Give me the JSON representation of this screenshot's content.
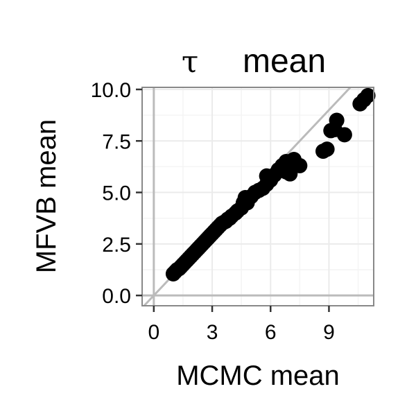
{
  "chart_data": {
    "type": "scatter",
    "title": {
      "symbol": "τ",
      "text": "mean"
    },
    "xlabel": "MCMC mean",
    "ylabel": "MFVB mean",
    "xlim": [
      -0.6,
      11.3
    ],
    "ylim": [
      -0.5,
      10.1
    ],
    "x_ticks": [
      {
        "value": 0,
        "label": "0"
      },
      {
        "value": 3,
        "label": "3"
      },
      {
        "value": 6,
        "label": "6"
      },
      {
        "value": 9,
        "label": "9"
      }
    ],
    "y_ticks": [
      {
        "value": 0,
        "label": "0.0"
      },
      {
        "value": 2.5,
        "label": "2.5"
      },
      {
        "value": 5,
        "label": "5.0"
      },
      {
        "value": 7.5,
        "label": "7.5"
      },
      {
        "value": 10,
        "label": "10.0"
      }
    ],
    "grid": true,
    "reference_lines": [
      "x = 0",
      "y = 0",
      "y = x"
    ],
    "point_color": "#000000",
    "reference_line_color": "#bbbbbb",
    "panel_border_color": "#888888",
    "grid_color": "#ebebeb",
    "points": [
      {
        "x": 1.0,
        "y": 1.05
      },
      {
        "x": 1.1,
        "y": 1.15
      },
      {
        "x": 1.2,
        "y": 1.25
      },
      {
        "x": 1.3,
        "y": 1.3
      },
      {
        "x": 1.4,
        "y": 1.4
      },
      {
        "x": 1.5,
        "y": 1.5
      },
      {
        "x": 1.6,
        "y": 1.6
      },
      {
        "x": 1.7,
        "y": 1.7
      },
      {
        "x": 1.8,
        "y": 1.8
      },
      {
        "x": 1.9,
        "y": 1.9
      },
      {
        "x": 2.0,
        "y": 2.0
      },
      {
        "x": 2.1,
        "y": 2.1
      },
      {
        "x": 2.2,
        "y": 2.2
      },
      {
        "x": 2.3,
        "y": 2.3
      },
      {
        "x": 2.4,
        "y": 2.4
      },
      {
        "x": 2.5,
        "y": 2.5
      },
      {
        "x": 2.6,
        "y": 2.6
      },
      {
        "x": 2.7,
        "y": 2.7
      },
      {
        "x": 2.8,
        "y": 2.8
      },
      {
        "x": 2.9,
        "y": 2.9
      },
      {
        "x": 3.0,
        "y": 3.0
      },
      {
        "x": 3.1,
        "y": 3.1
      },
      {
        "x": 3.2,
        "y": 3.2
      },
      {
        "x": 3.3,
        "y": 3.3
      },
      {
        "x": 3.4,
        "y": 3.4
      },
      {
        "x": 3.5,
        "y": 3.5
      },
      {
        "x": 3.6,
        "y": 3.55
      },
      {
        "x": 3.7,
        "y": 3.6
      },
      {
        "x": 3.8,
        "y": 3.7
      },
      {
        "x": 3.9,
        "y": 3.75
      },
      {
        "x": 4.0,
        "y": 3.85
      },
      {
        "x": 4.2,
        "y": 4.0
      },
      {
        "x": 4.3,
        "y": 4.1
      },
      {
        "x": 4.5,
        "y": 4.25
      },
      {
        "x": 4.6,
        "y": 4.5
      },
      {
        "x": 4.8,
        "y": 4.5
      },
      {
        "x": 4.7,
        "y": 4.75
      },
      {
        "x": 5.0,
        "y": 4.8
      },
      {
        "x": 5.2,
        "y": 5.0
      },
      {
        "x": 5.4,
        "y": 5.1
      },
      {
        "x": 5.6,
        "y": 5.2
      },
      {
        "x": 5.8,
        "y": 5.4
      },
      {
        "x": 6.0,
        "y": 5.6
      },
      {
        "x": 5.8,
        "y": 5.8
      },
      {
        "x": 6.2,
        "y": 5.85
      },
      {
        "x": 6.4,
        "y": 6.1
      },
      {
        "x": 6.6,
        "y": 6.3
      },
      {
        "x": 6.8,
        "y": 6.5
      },
      {
        "x": 7.0,
        "y": 6.5
      },
      {
        "x": 6.8,
        "y": 6.0
      },
      {
        "x": 7.0,
        "y": 5.9
      },
      {
        "x": 7.1,
        "y": 6.3
      },
      {
        "x": 7.2,
        "y": 6.6
      },
      {
        "x": 7.5,
        "y": 6.3
      },
      {
        "x": 7.0,
        "y": 6.0
      },
      {
        "x": 8.7,
        "y": 7.0
      },
      {
        "x": 8.9,
        "y": 7.1
      },
      {
        "x": 9.1,
        "y": 8.0
      },
      {
        "x": 9.3,
        "y": 8.05
      },
      {
        "x": 9.4,
        "y": 8.5
      },
      {
        "x": 9.8,
        "y": 7.8
      },
      {
        "x": 10.6,
        "y": 9.3
      },
      {
        "x": 10.8,
        "y": 9.5
      },
      {
        "x": 11.0,
        "y": 9.7
      }
    ]
  }
}
